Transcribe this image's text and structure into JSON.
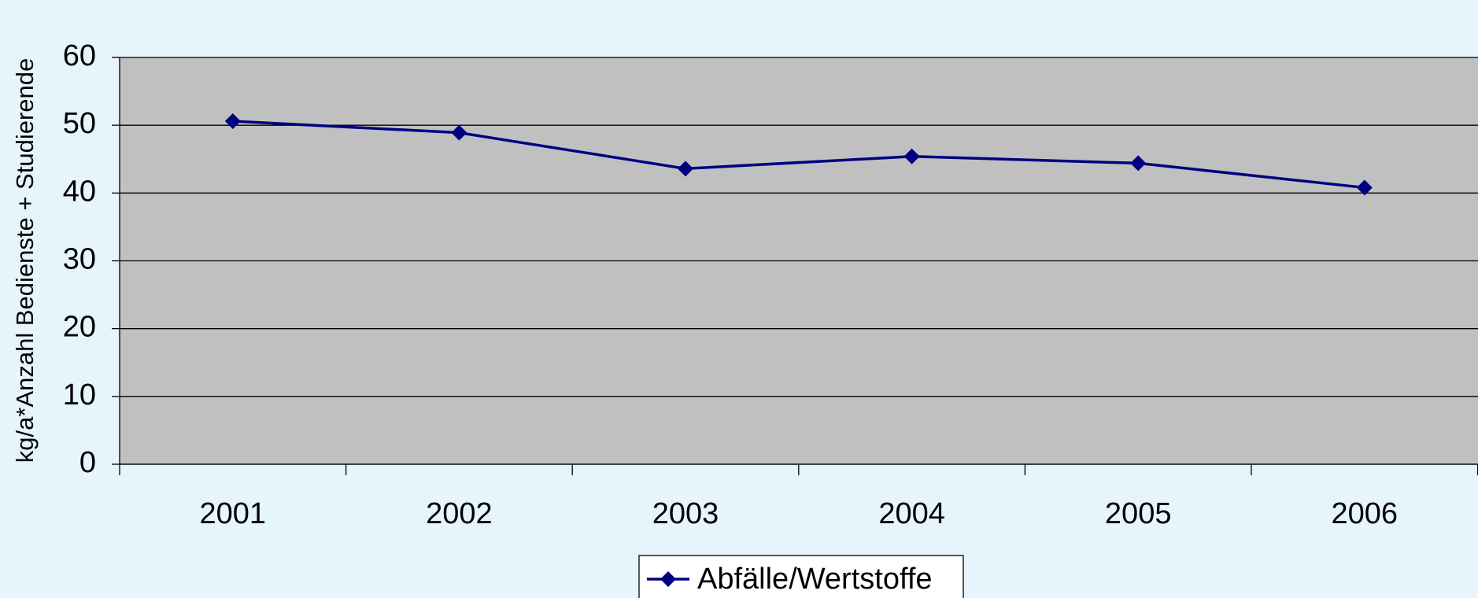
{
  "chart_data": {
    "type": "line",
    "y_label": "kg/a*Anzahl Bedienste + Studierende",
    "categories": [
      "2001",
      "2002",
      "2003",
      "2004",
      "2005",
      "2006"
    ],
    "series": [
      {
        "name": "Abfälle/Wertstoffe",
        "color": "#000080",
        "values": [
          50.6,
          48.9,
          43.6,
          45.4,
          44.4,
          40.8
        ]
      }
    ],
    "ylim": [
      0,
      60
    ],
    "yticks": [
      0,
      10,
      20,
      30,
      40,
      50,
      60
    ],
    "grid": true,
    "legend": "bottom"
  }
}
